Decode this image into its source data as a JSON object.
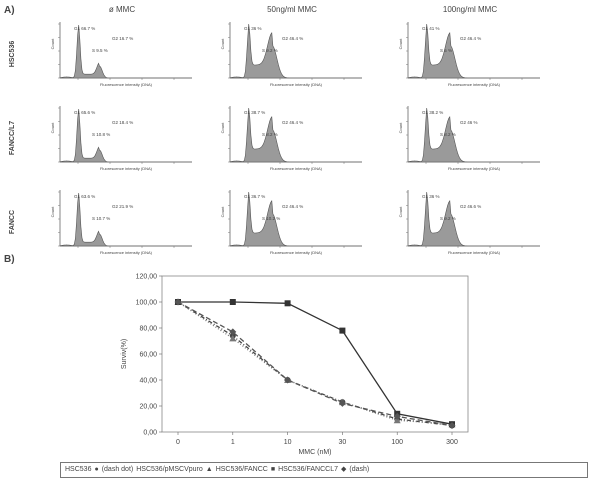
{
  "panel_labels": {
    "a": "A)",
    "b": "B)"
  },
  "flow_panel": {
    "column_headers": [
      "ø MMC",
      "50ng/ml MMC",
      "100ng/ml MMC"
    ],
    "row_labels": [
      "HSC536",
      "FANCC/L7",
      "FANCC"
    ],
    "x_axis_label": "Fluorescence intensity (DNA)",
    "y_axis_label": "Count",
    "gate_labels": [
      [
        [
          "G1 66.7 %",
          "G2 16.7 %",
          "S 9.5 %"
        ],
        [
          "G1 36 %",
          "G2 46.4 %",
          "S 9.2 %"
        ],
        [
          "G1 41 %",
          "G2 46.4 %",
          "S 5 %"
        ]
      ],
      [
        [
          "G1 65.6 %",
          "G2 18.4 %",
          "S 10.8 %"
        ],
        [
          "G1 38.7 %",
          "G2 46.4 %",
          "S 8.2 %"
        ],
        [
          "G1 38.2 %",
          "G2 46 %",
          "S 8.2 %"
        ]
      ],
      [
        [
          "G1 63.6 %",
          "G2 21.9 %",
          "S 10.7 %"
        ],
        [
          "G1 36.7 %",
          "G2 46.4 %",
          "S 10.2 %"
        ],
        [
          "G1 36 %",
          "G2 46.6 %",
          "S 9.2 %"
        ]
      ]
    ]
  },
  "chart_data": {
    "type": "line",
    "title": "",
    "xlabel": "MMC (nM)",
    "ylabel": "Surviv(%)",
    "categories": [
      "0",
      "1",
      "10",
      "30",
      "100",
      "300"
    ],
    "ylim": [
      0,
      120
    ],
    "yticks": [
      "0,00",
      "20,00",
      "40,00",
      "60,00",
      "80,00",
      "100,00",
      "120,00"
    ],
    "series": [
      {
        "name": "HSC536",
        "values": [
          100,
          74,
          40,
          23,
          10,
          5
        ],
        "color": "#444444",
        "marker": "circle"
      },
      {
        "name": "HSC536/pMSCVpuro",
        "values": [
          100,
          72,
          40,
          23,
          9,
          6
        ],
        "color": "#777777",
        "marker": "triangle"
      },
      {
        "name": "HSC536/FANCC",
        "values": [
          100,
          100,
          99,
          78,
          14,
          6
        ],
        "color": "#333333",
        "marker": "square"
      },
      {
        "name": "HSC536/FANCCL7",
        "values": [
          100,
          77,
          40,
          22,
          12,
          5
        ],
        "color": "#555555",
        "marker": "diamond"
      }
    ]
  },
  "legend": {
    "items": [
      "HSC536",
      "●",
      "(dash dot)",
      "HSC536/pMSCVpuro",
      "▲",
      "HSC536/FANCC",
      "■",
      "HSC536/FANCCL7",
      "◆",
      "(dash)"
    ]
  }
}
